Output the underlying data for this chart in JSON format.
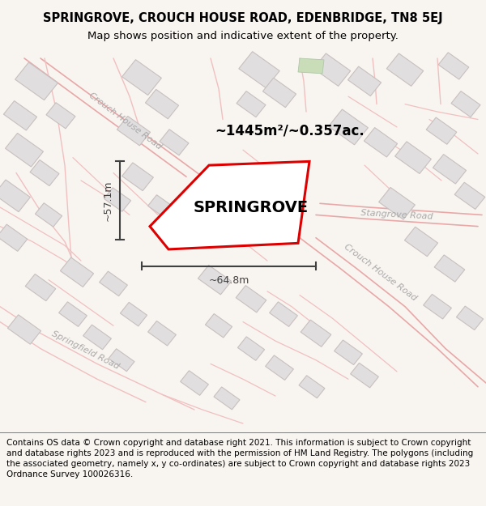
{
  "title_line1": "SPRINGROVE, CROUCH HOUSE ROAD, EDENBRIDGE, TN8 5EJ",
  "title_line2": "Map shows position and indicative extent of the property.",
  "footer_text": "Contains OS data © Crown copyright and database right 2021. This information is subject to Crown copyright and database rights 2023 and is reproduced with the permission of HM Land Registry. The polygons (including the associated geometry, namely x, y co-ordinates) are subject to Crown copyright and database rights 2023 Ordnance Survey 100026316.",
  "area_label": "~1445m²/~0.357ac.",
  "property_label": "SPRINGROVE",
  "width_label": "~64.8m",
  "height_label": "~57.1m",
  "map_bg": "#ffffff",
  "page_bg": "#f8f4f0",
  "road_line_color": "#e8a8a8",
  "road_line_color2": "#f0c0c0",
  "building_fc": "#e0dede",
  "building_ec": "#c8c0c0",
  "property_ec": "#dd0000",
  "property_fc": "#ffffff",
  "dim_color": "#404040",
  "road_label_color": "#aaaaaa",
  "green_fc": "#c8ddb8",
  "title_fontsize": 10.5,
  "subtitle_fontsize": 9.5,
  "footer_fontsize": 7.5,
  "figsize": [
    6.0,
    6.25
  ],
  "dpi": 100
}
